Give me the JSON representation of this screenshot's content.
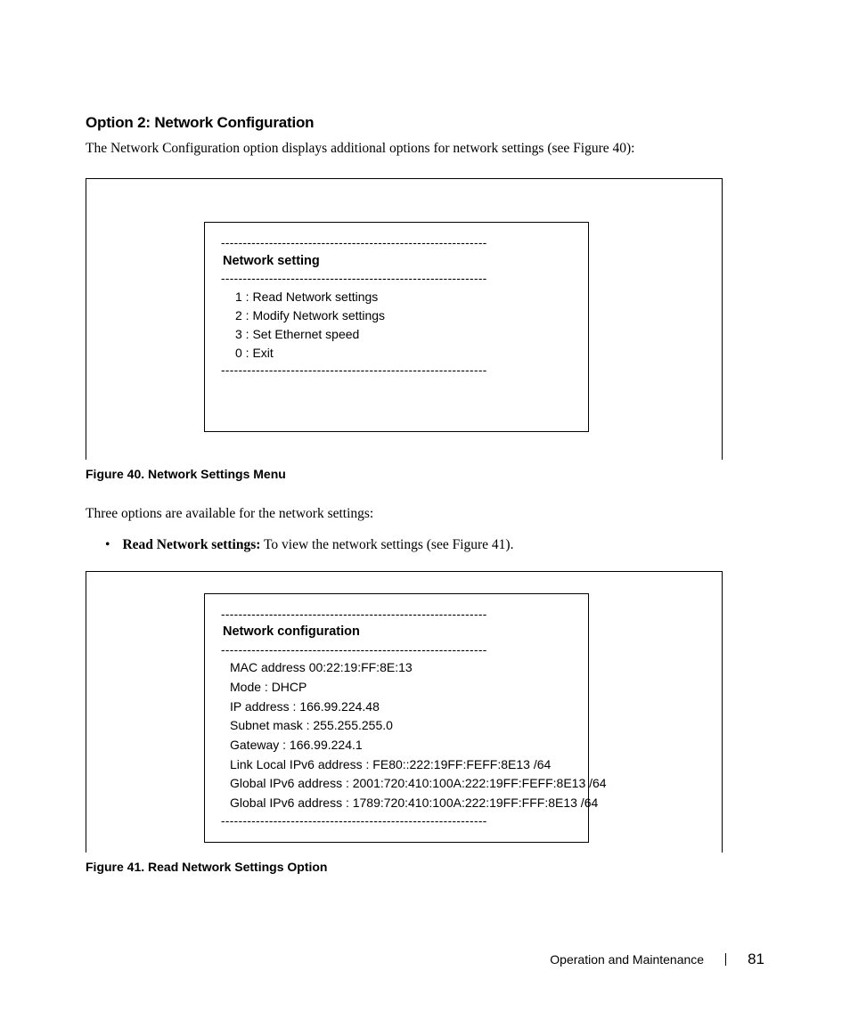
{
  "heading": "Option 2: Network Configuration",
  "intro": "The Network Configuration option displays additional options for network settings (see Figure 40):",
  "figure40": {
    "dashes": "-------------------------------------------------------------",
    "title": "Network setting",
    "items": [
      "1 : Read Network settings",
      "2 : Modify Network settings",
      "3 : Set Ethernet speed",
      "0 : Exit"
    ],
    "caption": "Figure 40. Network Settings Menu"
  },
  "mid_para": "Three options are available for the network settings:",
  "bullet": {
    "strong": "Read Network settings:",
    "rest": " To view the network settings (see Figure 41)."
  },
  "figure41": {
    "dashes": "-------------------------------------------------------------",
    "title": "Network configuration",
    "items": [
      "MAC address 00:22:19:FF:8E:13",
      "Mode : DHCP",
      "IP address : 166.99.224.48",
      "Subnet mask : 255.255.255.0",
      "Gateway : 166.99.224.1",
      "Link Local IPv6 address : FE80::222:19FF:FEFF:8E13 /64",
      "Global IPv6 address : 2001:720:410:100A:222:19FF:FEFF:8E13 /64",
      "Global IPv6 address : 1789:720:410:100A:222:19FF:FFF:8E13 /64"
    ],
    "caption": "Figure 41. Read Network Settings Option"
  },
  "footer": {
    "section": "Operation and Maintenance",
    "page": "81"
  }
}
